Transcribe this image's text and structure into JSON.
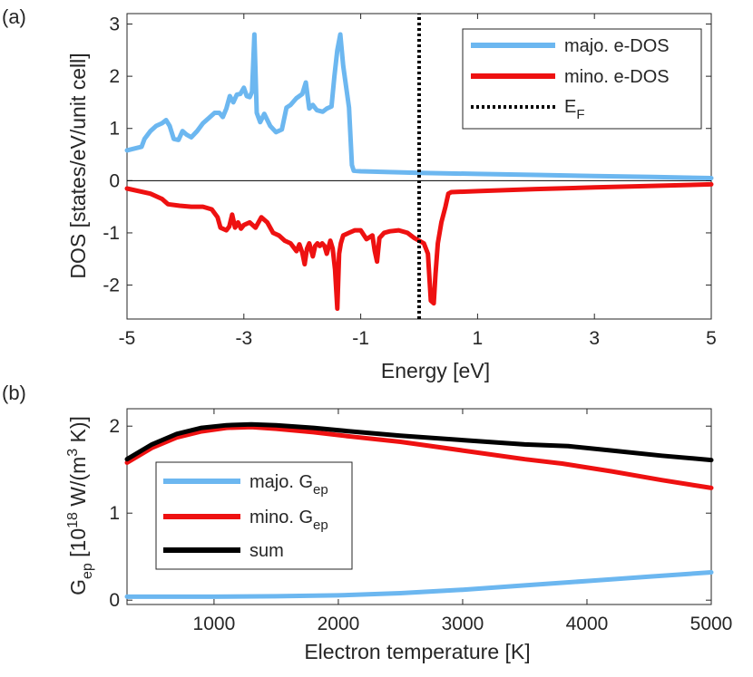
{
  "chart_data": [
    {
      "panel_label": "(a)",
      "type": "line",
      "xlabel": "Energy [eV]",
      "ylabel": "DOS [states/eV/unit cell]",
      "xlim": [
        -5,
        5
      ],
      "ylim": [
        -2.65,
        3.2
      ],
      "xticks": [
        -5,
        -3,
        -1,
        1,
        3,
        5
      ],
      "xtick_labels": [
        "-5",
        "-3",
        "-1",
        "1",
        "3",
        "5"
      ],
      "yticks": [
        -2,
        -1,
        0,
        1,
        2,
        3
      ],
      "ytick_labels": [
        "-2",
        "-1",
        "0",
        "1",
        "2",
        "3"
      ],
      "legend_position": "top-right",
      "series": [
        {
          "name": "majo. e-DOS",
          "color": "#6cb7f0",
          "x": [
            -5.0,
            -4.75,
            -4.7,
            -4.6,
            -4.5,
            -4.4,
            -4.33,
            -4.27,
            -4.2,
            -4.12,
            -4.05,
            -3.98,
            -3.9,
            -3.8,
            -3.7,
            -3.6,
            -3.5,
            -3.42,
            -3.36,
            -3.3,
            -3.24,
            -3.18,
            -3.12,
            -3.06,
            -3.0,
            -2.95,
            -2.9,
            -2.86,
            -2.82,
            -2.78,
            -2.72,
            -2.65,
            -2.55,
            -2.45,
            -2.35,
            -2.27,
            -2.2,
            -2.1,
            -2.0,
            -1.94,
            -1.88,
            -1.82,
            -1.75,
            -1.65,
            -1.58,
            -1.5,
            -1.45,
            -1.4,
            -1.35,
            -1.3,
            -1.25,
            -1.2,
            -1.15,
            -1.12,
            -1.0,
            0.0,
            1.0,
            2.0,
            3.0,
            4.0,
            5.0
          ],
          "y": [
            0.58,
            0.65,
            0.8,
            0.95,
            1.05,
            1.1,
            1.16,
            1.05,
            0.8,
            0.78,
            0.95,
            0.88,
            0.83,
            0.95,
            1.1,
            1.2,
            1.3,
            1.3,
            1.22,
            1.38,
            1.62,
            1.5,
            1.65,
            1.66,
            1.78,
            1.62,
            1.6,
            1.7,
            2.8,
            1.3,
            1.12,
            1.28,
            1.05,
            0.93,
            0.98,
            1.4,
            1.45,
            1.58,
            1.66,
            1.88,
            1.38,
            1.45,
            1.35,
            1.32,
            1.38,
            1.42,
            2.0,
            2.5,
            2.8,
            2.2,
            1.8,
            1.4,
            0.3,
            0.19,
            0.18,
            0.15,
            0.13,
            0.11,
            0.09,
            0.07,
            0.05
          ]
        },
        {
          "name": "mino. e-DOS",
          "color": "#ee1111",
          "x": [
            -5.0,
            -4.6,
            -4.4,
            -4.3,
            -4.1,
            -3.9,
            -3.7,
            -3.55,
            -3.45,
            -3.4,
            -3.3,
            -3.25,
            -3.2,
            -3.15,
            -3.1,
            -3.05,
            -3.0,
            -2.9,
            -2.8,
            -2.7,
            -2.6,
            -2.5,
            -2.4,
            -2.3,
            -2.2,
            -2.1,
            -2.05,
            -2.0,
            -1.96,
            -1.92,
            -1.88,
            -1.82,
            -1.78,
            -1.74,
            -1.7,
            -1.66,
            -1.62,
            -1.58,
            -1.52,
            -1.48,
            -1.44,
            -1.4,
            -1.37,
            -1.34,
            -1.3,
            -1.2,
            -1.1,
            -1.0,
            -0.9,
            -0.8,
            -0.76,
            -0.72,
            -0.68,
            -0.6,
            -0.5,
            -0.35,
            -0.2,
            -0.08,
            0.0,
            0.08,
            0.15,
            0.2,
            0.25,
            0.28,
            0.32,
            0.38,
            0.45,
            0.5,
            0.55,
            1.0,
            2.0,
            3.0,
            4.0,
            5.0
          ],
          "y": [
            -0.15,
            -0.25,
            -0.35,
            -0.45,
            -0.48,
            -0.5,
            -0.5,
            -0.55,
            -0.7,
            -0.9,
            -0.95,
            -0.88,
            -0.65,
            -0.9,
            -0.8,
            -0.92,
            -0.85,
            -0.8,
            -0.9,
            -0.7,
            -0.8,
            -1.0,
            -1.05,
            -1.15,
            -1.2,
            -1.35,
            -1.22,
            -1.38,
            -1.6,
            -1.3,
            -1.2,
            -1.45,
            -1.25,
            -1.2,
            -1.25,
            -1.2,
            -1.25,
            -1.4,
            -1.15,
            -1.3,
            -1.7,
            -2.45,
            -1.4,
            -1.2,
            -1.05,
            -1.0,
            -0.95,
            -0.95,
            -1.12,
            -1.05,
            -1.35,
            -1.55,
            -1.1,
            -1.0,
            -0.97,
            -0.95,
            -1.0,
            -1.1,
            -1.15,
            -1.2,
            -1.4,
            -2.3,
            -2.35,
            -1.8,
            -1.2,
            -0.8,
            -0.5,
            -0.25,
            -0.22,
            -0.2,
            -0.16,
            -0.13,
            -0.1,
            -0.07
          ]
        },
        {
          "name": "E",
          "name_sub": "F",
          "color": "#000000",
          "style": "dotted",
          "x": [
            0.0,
            0.0
          ],
          "y": [
            -2.65,
            3.2
          ]
        }
      ]
    },
    {
      "panel_label": "(b)",
      "type": "line",
      "xlabel": "Electron temperature [K]",
      "ylabel": "G",
      "ylabel_sub": "ep",
      "ylabel_rest": " [10",
      "ylabel_exp": "18",
      "ylabel_unit": " W/(m",
      "ylabel_unit_exp": "3",
      "ylabel_end": " K)]",
      "xlim": [
        300,
        5000
      ],
      "ylim": [
        -0.05,
        2.2
      ],
      "xticks": [
        1000,
        2000,
        3000,
        4000,
        5000
      ],
      "xtick_labels": [
        "1000",
        "2000",
        "3000",
        "4000",
        "5000"
      ],
      "yticks": [
        0,
        1,
        2
      ],
      "ytick_labels": [
        "0",
        "1",
        "2"
      ],
      "legend_position": "bottom-left",
      "series": [
        {
          "name": "majo. G",
          "name_sub": "ep",
          "color": "#6cb7f0",
          "x": [
            300,
            500,
            1000,
            1500,
            2000,
            2500,
            3000,
            3500,
            4000,
            4500,
            5000
          ],
          "y": [
            0.04,
            0.04,
            0.04,
            0.045,
            0.055,
            0.08,
            0.12,
            0.17,
            0.22,
            0.27,
            0.32
          ]
        },
        {
          "name": "mino. G",
          "name_sub": "ep",
          "color": "#ee1111",
          "x": [
            300,
            500,
            700,
            900,
            1100,
            1300,
            1500,
            1800,
            2100,
            2500,
            3000,
            3500,
            3800,
            4200,
            4600,
            5000
          ],
          "y": [
            1.58,
            1.75,
            1.87,
            1.94,
            1.98,
            1.99,
            1.97,
            1.93,
            1.88,
            1.82,
            1.72,
            1.62,
            1.57,
            1.48,
            1.38,
            1.29
          ]
        },
        {
          "name": "sum",
          "color": "#000000",
          "x": [
            300,
            500,
            700,
            900,
            1100,
            1300,
            1500,
            1800,
            2100,
            2500,
            3000,
            3500,
            3850,
            4200,
            4600,
            5000
          ],
          "y": [
            1.62,
            1.79,
            1.91,
            1.98,
            2.01,
            2.02,
            2.01,
            1.98,
            1.94,
            1.89,
            1.84,
            1.79,
            1.77,
            1.72,
            1.66,
            1.61
          ]
        }
      ]
    }
  ]
}
